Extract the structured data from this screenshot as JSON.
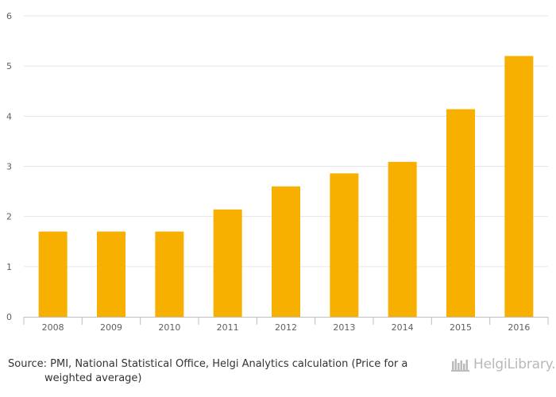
{
  "chart_data": {
    "type": "bar",
    "title": "",
    "xlabel": "",
    "ylabel": "",
    "categories": [
      "2008",
      "2009",
      "2010",
      "2011",
      "2012",
      "2013",
      "2014",
      "2015",
      "2016"
    ],
    "values": [
      1.7,
      1.7,
      1.7,
      2.14,
      2.6,
      2.86,
      3.09,
      4.14,
      5.2
    ],
    "ylim": [
      0,
      6
    ],
    "yticks": [
      "0",
      "1",
      "2",
      "3",
      "4",
      "5",
      "6"
    ],
    "grid": true,
    "legend": "none",
    "bar_color": "#f7b000"
  },
  "footer": {
    "source_line1": "Source: PMI, National Statistical Office, Helgi Analytics calculation (Price for a",
    "source_line2": "weighted average)",
    "logo_text": "HelgiLibrary."
  },
  "logo_icon": "helgi-library-shelf-icon"
}
